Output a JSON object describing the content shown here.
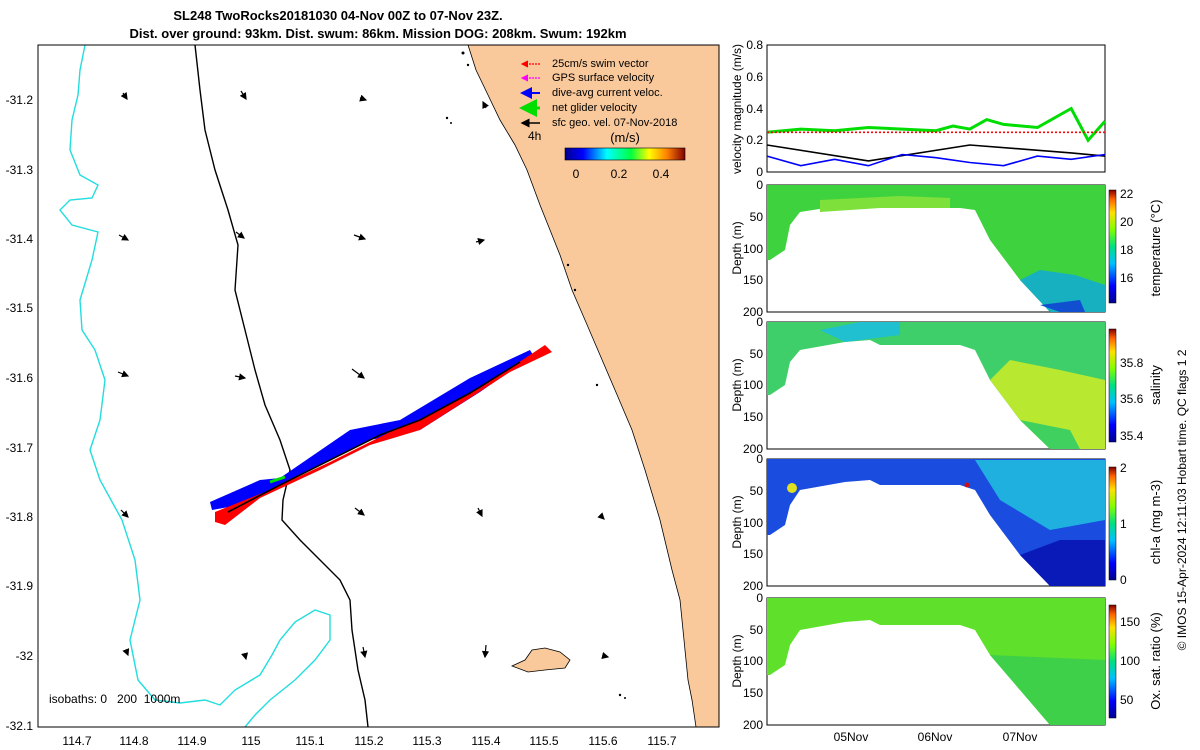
{
  "title": {
    "line1": "SL248 TwoRocks20181030 04-Nov 00Z to 07-Nov 23Z.",
    "line2": "Dist. over ground: 93km. Dist. swum: 86km. Mission DOG: 208km. Swum: 192km"
  },
  "map": {
    "legend": [
      {
        "label": "25cm/s swim vector",
        "color": "#ff0000"
      },
      {
        "label": "GPS surface velocity",
        "color": "#ff00ff"
      },
      {
        "label": "dive-avg current veloc.",
        "color": "#0000ff"
      },
      {
        "label": "net glider velocity",
        "color": "#00dd00"
      },
      {
        "label": "sfc geo. vel. 07-Nov-2018",
        "color": "#000000"
      }
    ],
    "legend_note": "4h",
    "colorbar": {
      "label": "(m/s)",
      "ticks": [
        "0",
        "0.2",
        "0.4"
      ],
      "range": [
        0,
        0.5
      ]
    },
    "isobaths_label": "isobaths: 0   200  1000m",
    "lon_ticks": [
      "114.7",
      "114.8",
      "114.9",
      "115",
      "115.1",
      "115.2",
      "115.3",
      "115.4",
      "115.5",
      "115.6",
      "115.7"
    ],
    "lat_ticks": [
      "-31.2",
      "-31.3",
      "-31.4",
      "-31.5",
      "-31.6",
      "-31.7",
      "-31.8",
      "-31.9",
      "-32",
      "-32.1"
    ],
    "land_color": "#f9c99c",
    "isobath_200_color": "#000000",
    "isobath_1000_color": "#22dddd"
  },
  "chart_data": [
    {
      "type": "line",
      "ylabel": "velocity magnitude (m/s)",
      "ylim": [
        0,
        0.8
      ],
      "yticks": [
        "0",
        "0.2",
        "0.4",
        "0.6",
        "0.8"
      ],
      "series": [
        {
          "color": "#00dd00",
          "x": [
            0,
            0.1,
            0.2,
            0.3,
            0.4,
            0.5,
            0.55,
            0.6,
            0.65,
            0.7,
            0.8,
            0.9,
            0.95,
            1.0
          ],
          "values": [
            0.25,
            0.27,
            0.26,
            0.28,
            0.27,
            0.26,
            0.29,
            0.27,
            0.33,
            0.3,
            0.28,
            0.4,
            0.2,
            0.32
          ]
        },
        {
          "color": "#ff0000",
          "x": [
            0,
            1.0
          ],
          "values": [
            0.25,
            0.25
          ]
        },
        {
          "color": "#000000",
          "x": [
            0,
            0.3,
            0.6,
            0.9,
            1.0
          ],
          "values": [
            0.17,
            0.07,
            0.17,
            0.12,
            0.1
          ]
        },
        {
          "color": "#0000ff",
          "x": [
            0,
            0.1,
            0.2,
            0.3,
            0.4,
            0.5,
            0.6,
            0.7,
            0.8,
            0.9,
            1.0
          ],
          "values": [
            0.1,
            0.04,
            0.08,
            0.04,
            0.11,
            0.09,
            0.06,
            0.04,
            0.1,
            0.08,
            0.11
          ]
        }
      ]
    },
    {
      "type": "heatmap",
      "ylabel": "Depth (m)",
      "yticks": [
        "0",
        "50",
        "100",
        "150",
        "200"
      ],
      "colorbar_label": "temperature (°C)",
      "colorbar_ticks": [
        "16",
        "18",
        "20",
        "22"
      ]
    },
    {
      "type": "heatmap",
      "ylabel": "Depth (m)",
      "yticks": [
        "0",
        "50",
        "100",
        "150",
        "200"
      ],
      "colorbar_label": "salinity",
      "colorbar_ticks": [
        "35.4",
        "35.6",
        "35.8"
      ]
    },
    {
      "type": "heatmap",
      "ylabel": "Depth (m)",
      "yticks": [
        "0",
        "50",
        "100",
        "150",
        "200"
      ],
      "colorbar_label": "chl-a (mg m-3)",
      "colorbar_ticks": [
        "0",
        "1",
        "2"
      ]
    },
    {
      "type": "heatmap",
      "ylabel": "Depth (m)",
      "yticks": [
        "0",
        "50",
        "100",
        "150",
        "200"
      ],
      "colorbar_label": "Ox. sat. ratio (%)",
      "colorbar_ticks": [
        "50",
        "100",
        "150"
      ],
      "xticks": [
        "05Nov",
        "06Nov",
        "07Nov"
      ]
    }
  ],
  "side_note": "© IMOS 15-Apr-2024 12:11:03 Hobart time. QC flags 1  2"
}
